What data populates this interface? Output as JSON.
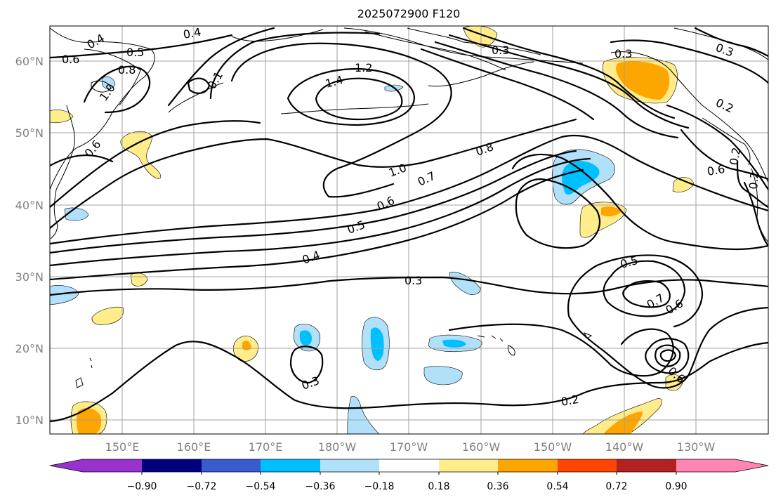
{
  "title": "2025072900 F120",
  "lat_labels": [
    "60°N",
    "50°N",
    "40°N",
    "30°N",
    "20°N",
    "10°N"
  ],
  "lon_labels": [
    "150°E",
    "160°E",
    "170°E",
    "180°W",
    "170°W",
    "160°W",
    "150°W",
    "140°W",
    "130°W"
  ],
  "colorbar": {
    "tick_labels": [
      "−0.90",
      "−0.72",
      "−0.54",
      "−0.36",
      "−0.18",
      "0.18",
      "0.36",
      "0.54",
      "0.72",
      "0.90"
    ],
    "colors": [
      "#9932cc",
      "#000080",
      "#3a5bd0",
      "#00bfff",
      "#b0e0fa",
      "#ffffff",
      "#ffec8b",
      "#ffa500",
      "#ff4500",
      "#b22222",
      "#ff85b4"
    ]
  },
  "contour_labels": [
    "0.4",
    "0.5",
    "0.6",
    "0.8",
    "1.0",
    "0.4",
    "1.2",
    "1.4",
    "0.3",
    "0.3",
    "0.3",
    "0.2",
    "0.8",
    "1.0",
    "0.7",
    "0.6",
    "0.5",
    "0.4",
    "0.6",
    "0.2",
    "0.3",
    "0.3",
    "0.5",
    "0.7",
    "0.6",
    "0.6",
    "0.2",
    "0.6",
    "0.1",
    "0.2"
  ]
}
